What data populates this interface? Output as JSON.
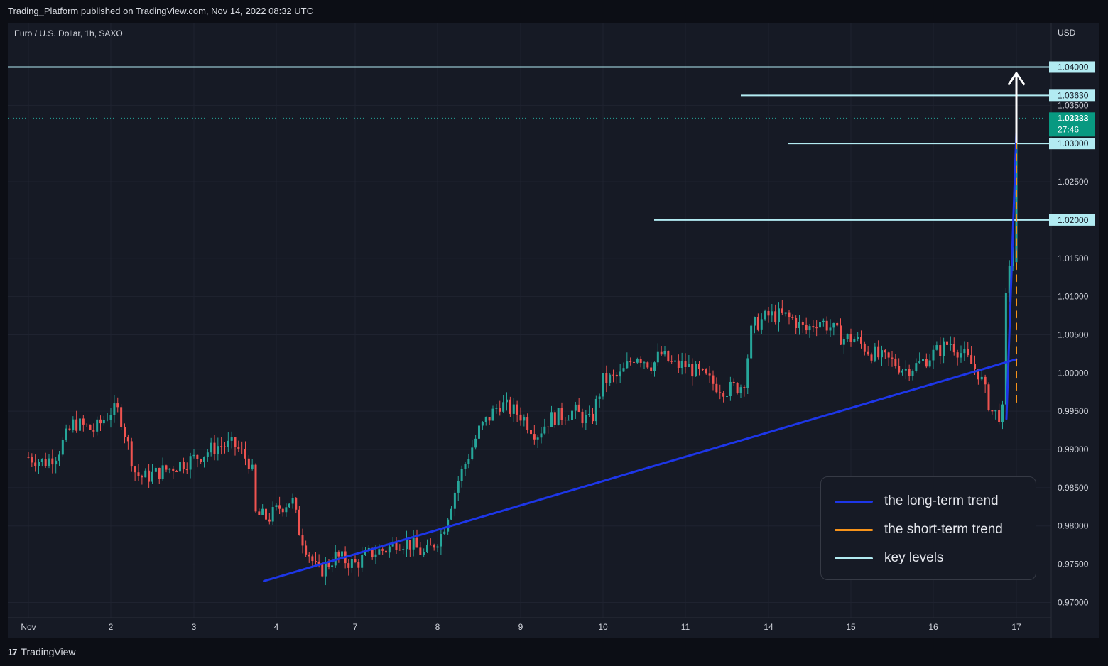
{
  "header": {
    "attribution": "Trading_Platform published on TradingView.com, Nov 14, 2022 08:32 UTC",
    "symbol": "Euro / U.S. Dollar, 1h, SAXO",
    "currency": "USD"
  },
  "footer": {
    "logo_mark": "17",
    "brand": "TradingView"
  },
  "colors": {
    "background": "#161a25",
    "up": "#26a69a",
    "down": "#ef5350",
    "long_trend": "#1d36e8",
    "short_trend": "#f7931a",
    "key_level": "#b2ebf2"
  },
  "chart_data": {
    "type": "candlestick",
    "symbol": "EURUSD",
    "timeframe": "1h",
    "y_axis": {
      "ylim": [
        0.968,
        1.0458
      ],
      "ticks": [
        "1.03500",
        "1.02500",
        "1.01500",
        "1.01000",
        "1.00500",
        "1.00000",
        "0.99500",
        "0.99000",
        "0.98500",
        "0.98000",
        "0.97500",
        "0.97000"
      ]
    },
    "x_axis": {
      "ticks": [
        {
          "label": "Nov",
          "day": 0
        },
        {
          "label": "2",
          "day": 1
        },
        {
          "label": "3",
          "day": 2
        },
        {
          "label": "4",
          "day": 3
        },
        {
          "label": "7",
          "day": 4
        },
        {
          "label": "8",
          "day": 5
        },
        {
          "label": "9",
          "day": 6
        },
        {
          "label": "10",
          "day": 7
        },
        {
          "label": "11",
          "day": 8
        },
        {
          "label": "14",
          "day": 9
        },
        {
          "label": "15",
          "day": 10
        },
        {
          "label": "16",
          "day": 11
        },
        {
          "label": "17",
          "day": 12
        }
      ]
    },
    "closes": [
      [
        0.0,
        0.989
      ],
      [
        0.2,
        0.9883
      ],
      [
        0.35,
        0.9895
      ],
      [
        0.55,
        0.9935
      ],
      [
        0.8,
        0.9925
      ],
      [
        1.0,
        0.995
      ],
      [
        1.1,
        0.995
      ],
      [
        1.3,
        0.9868
      ],
      [
        1.4,
        0.9863
      ],
      [
        1.7,
        0.9875
      ],
      [
        2.0,
        0.9888
      ],
      [
        2.3,
        0.9905
      ],
      [
        2.5,
        0.9905
      ],
      [
        2.7,
        0.988
      ],
      [
        2.75,
        0.9815
      ],
      [
        2.9,
        0.981
      ],
      [
        3.05,
        0.9825
      ],
      [
        3.2,
        0.9835
      ],
      [
        3.3,
        0.979
      ],
      [
        3.5,
        0.9745
      ],
      [
        3.55,
        0.974
      ],
      [
        3.75,
        0.976
      ],
      [
        4.0,
        0.975
      ],
      [
        4.2,
        0.9765
      ],
      [
        4.4,
        0.977
      ],
      [
        4.5,
        0.978
      ],
      [
        4.65,
        0.9778
      ],
      [
        4.85,
        0.9762
      ],
      [
        5.05,
        0.979
      ],
      [
        5.25,
        0.986
      ],
      [
        5.5,
        0.9925
      ],
      [
        5.75,
        0.996
      ],
      [
        6.0,
        0.9945
      ],
      [
        6.2,
        0.992
      ],
      [
        6.35,
        0.994
      ],
      [
        6.5,
        0.9945
      ],
      [
        6.65,
        0.995
      ],
      [
        6.85,
        0.9935
      ],
      [
        7.0,
        0.999
      ],
      [
        7.2,
        0.9995
      ],
      [
        7.4,
        1.0025
      ],
      [
        7.6,
        1.001
      ],
      [
        7.7,
        1.0025
      ],
      [
        7.85,
        1.001
      ],
      [
        8.0,
        1.001
      ],
      [
        8.15,
        1.0
      ],
      [
        8.35,
        0.9985
      ],
      [
        8.5,
        0.9978
      ],
      [
        8.7,
        0.9985
      ],
      [
        8.8,
        1.006
      ],
      [
        9.0,
        1.0075
      ],
      [
        9.15,
        1.0075
      ],
      [
        9.3,
        1.007
      ],
      [
        9.45,
        1.0055
      ],
      [
        9.6,
        1.007
      ],
      [
        9.75,
        1.006
      ],
      [
        9.9,
        1.0045
      ],
      [
        10.05,
        1.0045
      ],
      [
        10.2,
        1.003
      ],
      [
        10.35,
        1.002
      ],
      [
        10.5,
        1.0015
      ],
      [
        10.65,
        1.0005
      ],
      [
        10.8,
        1.001
      ],
      [
        11.0,
        1.0025
      ],
      [
        11.2,
        1.004
      ],
      [
        11.35,
        1.0025
      ],
      [
        11.55,
        1.0
      ],
      [
        11.7,
        0.995
      ],
      [
        11.8,
        0.9945
      ],
      [
        11.85,
        0.995
      ],
      [
        11.88,
        1.0125
      ],
      [
        11.95,
        1.0165
      ],
      [
        12.1,
        1.0185
      ],
      [
        12.2,
        1.017
      ],
      [
        12.3,
        1.0145
      ],
      [
        12.45,
        1.018
      ],
      [
        12.55,
        1.021
      ],
      [
        12.65,
        1.0195
      ],
      [
        12.75,
        1.018
      ],
      [
        12.85,
        1.0168
      ],
      [
        12.95,
        1.0185
      ],
      [
        13.05,
        1.02
      ],
      [
        13.15,
        1.024
      ],
      [
        13.25,
        1.0265
      ],
      [
        13.4,
        1.027
      ],
      [
        13.5,
        1.0285
      ],
      [
        13.6,
        1.0305
      ],
      [
        13.7,
        1.0328
      ],
      [
        13.8,
        1.0345
      ],
      [
        13.87,
        1.036
      ],
      [
        13.95,
        1.0355
      ],
      [
        14.0,
        1.033
      ],
      [
        14.1,
        1.032
      ],
      [
        14.2,
        1.0325
      ],
      [
        14.3,
        1.0318
      ],
      [
        14.38,
        1.0305
      ],
      [
        14.45,
        1.031
      ],
      [
        14.5,
        1.0315
      ],
      [
        14.55,
        1.03333
      ]
    ],
    "horizontal_levels": [
      {
        "value": 1.04,
        "label": "1.04000"
      },
      {
        "value": 1.0363,
        "label": "1.03630"
      },
      {
        "value": 1.03,
        "label": "1.03000"
      },
      {
        "value": 1.02,
        "label": "1.02000"
      }
    ],
    "last_price": {
      "value": 1.03333,
      "label": "1.03333",
      "countdown": "27:46"
    },
    "trend_lines": [
      {
        "type": "long-term",
        "points": [
          [
            2.85,
            0.9728
          ],
          [
            14.43,
            1.0018
          ]
        ]
      },
      {
        "type": "long-term",
        "points": [
          [
            11.88,
            0.994
          ],
          [
            14.48,
            1.0315
          ]
        ]
      },
      {
        "type": "short-term",
        "dashed": true,
        "points": [
          [
            12.85,
            0.9962
          ],
          [
            14.15,
            1.0353
          ]
        ]
      },
      {
        "type": "short-term",
        "points": [
          [
            13.85,
            1.036
          ],
          [
            14.85,
            1.0342
          ]
        ]
      }
    ],
    "forecast_path": [
      [
        14.62,
        1.0347
      ],
      [
        14.8,
        1.0302
      ],
      [
        15.2,
        1.0392
      ]
    ],
    "legend": [
      {
        "label": "the long-term trend",
        "color": "#1d36e8"
      },
      {
        "label": "the short-term trend",
        "color": "#f7931a"
      },
      {
        "label": "key levels",
        "color": "#b2ebf2"
      }
    ]
  }
}
